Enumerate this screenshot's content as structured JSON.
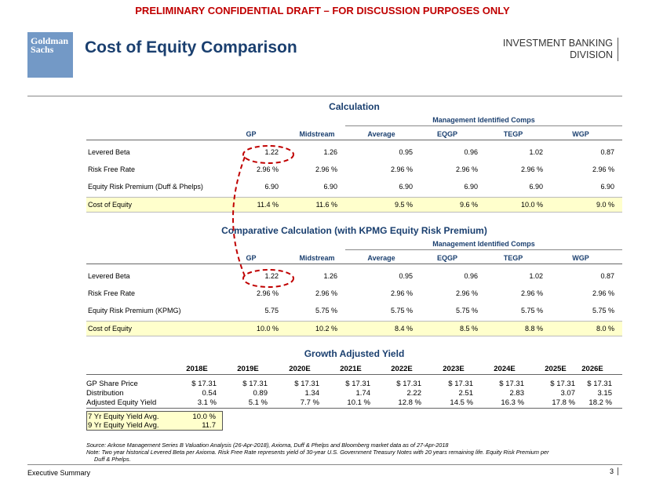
{
  "header": {
    "banner": "PRELIMINARY CONFIDENTIAL DRAFT – FOR DISCUSSION PURPOSES ONLY",
    "logo_line1": "Goldman",
    "logo_line2": "Sachs",
    "title": "Cost of Equity Comparison",
    "division_line1": "INVESTMENT BANKING",
    "division_line2": "DIVISION"
  },
  "calc1": {
    "title": "Calculation",
    "mgmt": "Management Identified Comps",
    "columns": [
      "GP",
      "Midstream",
      "Average",
      "EQGP",
      "TEGP",
      "WGP"
    ],
    "rows": [
      {
        "label": "Levered Beta",
        "values": [
          "1.22",
          "1.26",
          "0.95",
          "0.96",
          "1.02",
          "0.87"
        ]
      },
      {
        "label": "Risk Free Rate",
        "values": [
          "2.96 %",
          "2.96 %",
          "2.96 %",
          "2.96 %",
          "2.96 %",
          "2.96 %"
        ]
      },
      {
        "label": "Equity Risk Premium (Duff & Phelps)",
        "values": [
          "6.90",
          "6.90",
          "6.90",
          "6.90",
          "6.90",
          "6.90"
        ]
      },
      {
        "label": "Cost of Equity",
        "values": [
          "11.4 %",
          "11.6 %",
          "9.5 %",
          "9.6 %",
          "10.0 %",
          "9.0 %"
        ]
      }
    ]
  },
  "calc2": {
    "title": "Comparative Calculation (with KPMG Equity Risk Premium)",
    "mgmt": "Management Identified Comps",
    "columns": [
      "GP",
      "Midstream",
      "Average",
      "EQGP",
      "TEGP",
      "WGP"
    ],
    "rows": [
      {
        "label": "Levered Beta",
        "values": [
          "1.22",
          "1.26",
          "0.95",
          "0.96",
          "1.02",
          "0.87"
        ]
      },
      {
        "label": "Risk Free Rate",
        "values": [
          "2.96 %",
          "2.96 %",
          "2.96 %",
          "2.96 %",
          "2.96 %",
          "2.96 %"
        ]
      },
      {
        "label": "Equity Risk Premium (KPMG)",
        "values": [
          "5.75",
          "5.75 %",
          "5.75 %",
          "5.75 %",
          "5.75 %",
          "5.75 %"
        ]
      },
      {
        "label": "Cost of Equity",
        "values": [
          "10.0 %",
          "10.2 %",
          "8.4 %",
          "8.5 %",
          "8.8 %",
          "8.0 %"
        ]
      }
    ]
  },
  "growth": {
    "title": "Growth Adjusted Yield",
    "years": [
      "2018E",
      "2019E",
      "2020E",
      "2021E",
      "2022E",
      "2023E",
      "2024E",
      "2025E",
      "2026E"
    ],
    "rows": [
      {
        "label": "GP Share Price",
        "values": [
          "$ 17.31",
          "$ 17.31",
          "$ 17.31",
          "$ 17.31",
          "$ 17.31",
          "$ 17.31",
          "$ 17.31",
          "$ 17.31",
          "$ 17.31"
        ]
      },
      {
        "label": "Distribution",
        "values": [
          "0.54",
          "0.89",
          "1.34",
          "1.74",
          "2.22",
          "2.51",
          "2.83",
          "3.07",
          "3.15"
        ]
      },
      {
        "label": "Adjusted Equity Yield",
        "values": [
          "3.1 %",
          "5.1 %",
          "7.7 %",
          "10.1 %",
          "12.8 %",
          "14.5 %",
          "16.3 %",
          "17.8 %",
          "18.2 %"
        ]
      }
    ],
    "avg": [
      {
        "label": "7 Yr Equity Yield Avg.",
        "value": "10.0 %"
      },
      {
        "label": "9 Yr Equity Yield Avg.",
        "value": "11.7"
      }
    ]
  },
  "source": {
    "line1": "Source: Arkose Management Series B Valuation Analysis (26-Apr-2018), Axioma, Duff & Phelps and Bloomberg market data as of 27-Apr-2018",
    "line2": "Note: Two year historical Levered Beta per Axioma. Risk Free Rate represents yield of 30-year U.S. Government Treasury Notes with 20 years remaining life. Equity Risk Premium per",
    "line3": "Duff & Phelps."
  },
  "footer": {
    "section": "Executive Summary",
    "page": "3"
  },
  "colors": {
    "banner": "#c00000",
    "title": "#1a3f6f",
    "logo": "#7399c6",
    "highlight": "#ffffcc",
    "annotation": "#c00000"
  }
}
